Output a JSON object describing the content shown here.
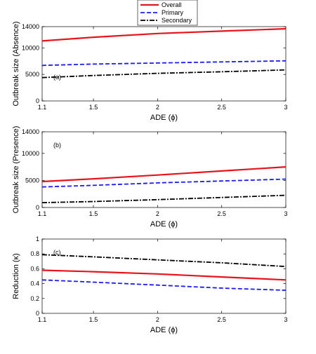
{
  "legend": {
    "entries": [
      {
        "label": "Overall",
        "color": "#e8141c",
        "dash": "solid"
      },
      {
        "label": "Primary",
        "color": "#1a1aff",
        "dash": "dashed"
      },
      {
        "label": "Secondary",
        "color": "#000000",
        "dash": "dashdot"
      }
    ]
  },
  "chart_data": [
    {
      "type": "line",
      "panel_label": "(a)",
      "xlabel": "ADE (ϕ)",
      "ylabel": "Outbreak size (Absence)",
      "xlim": [
        1.1,
        3
      ],
      "ylim": [
        0,
        14000
      ],
      "xticks": [
        1.1,
        1.5,
        2,
        2.5,
        3
      ],
      "xtick_labels": [
        "1.1",
        "1.5",
        "2",
        "2.5",
        "3"
      ],
      "yticks": [
        0,
        5000,
        10000,
        14000
      ],
      "ytick_labels": [
        "0",
        "5000",
        "10000",
        "14000"
      ],
      "grid": false,
      "x": [
        1.1,
        1.5,
        2,
        2.5,
        3
      ],
      "series": [
        {
          "name": "Overall",
          "values": [
            11300,
            12000,
            12700,
            13150,
            13600
          ]
        },
        {
          "name": "Primary",
          "values": [
            6700,
            6950,
            7150,
            7350,
            7550
          ]
        },
        {
          "name": "Secondary",
          "values": [
            4400,
            4800,
            5200,
            5500,
            5850
          ]
        }
      ]
    },
    {
      "type": "line",
      "panel_label": "(b)",
      "xlabel": "ADE (ϕ)",
      "ylabel": "Outbreak size (Presence)",
      "xlim": [
        1.1,
        3
      ],
      "ylim": [
        0,
        14000
      ],
      "xticks": [
        1.1,
        1.5,
        2,
        2.5,
        3
      ],
      "xtick_labels": [
        "1.1",
        "1.5",
        "2",
        "2.5",
        "3"
      ],
      "yticks": [
        0,
        5000,
        10000,
        14000
      ],
      "ytick_labels": [
        "0",
        "5000",
        "10000",
        "14000"
      ],
      "grid": false,
      "x": [
        1.1,
        1.5,
        2,
        2.5,
        3
      ],
      "series": [
        {
          "name": "Overall",
          "values": [
            4800,
            5300,
            6000,
            6750,
            7500
          ]
        },
        {
          "name": "Primary",
          "values": [
            3800,
            4100,
            4550,
            4900,
            5250
          ]
        },
        {
          "name": "Secondary",
          "values": [
            900,
            1100,
            1450,
            1850,
            2250
          ]
        }
      ]
    },
    {
      "type": "line",
      "panel_label": "(c)",
      "xlabel": "ADE (ϕ)",
      "ylabel": "Reduction (κ)",
      "xlim": [
        1.1,
        3
      ],
      "ylim": [
        0,
        1
      ],
      "xticks": [
        1.1,
        1.5,
        2,
        2.5,
        3
      ],
      "xtick_labels": [
        "1.1",
        "1.5",
        "2",
        "2.5",
        "3"
      ],
      "yticks": [
        0,
        0.2,
        0.4,
        0.6,
        0.8,
        1
      ],
      "ytick_labels": [
        "0",
        "0.2",
        "0.4",
        "0.6",
        "0.8",
        "1"
      ],
      "grid": false,
      "x": [
        1.1,
        1.5,
        2,
        2.5,
        3
      ],
      "series": [
        {
          "name": "Overall",
          "values": [
            0.58,
            0.56,
            0.53,
            0.49,
            0.45
          ]
        },
        {
          "name": "Primary",
          "values": [
            0.45,
            0.42,
            0.38,
            0.34,
            0.31
          ]
        },
        {
          "name": "Secondary",
          "values": [
            0.79,
            0.76,
            0.72,
            0.68,
            0.63
          ]
        }
      ]
    }
  ]
}
